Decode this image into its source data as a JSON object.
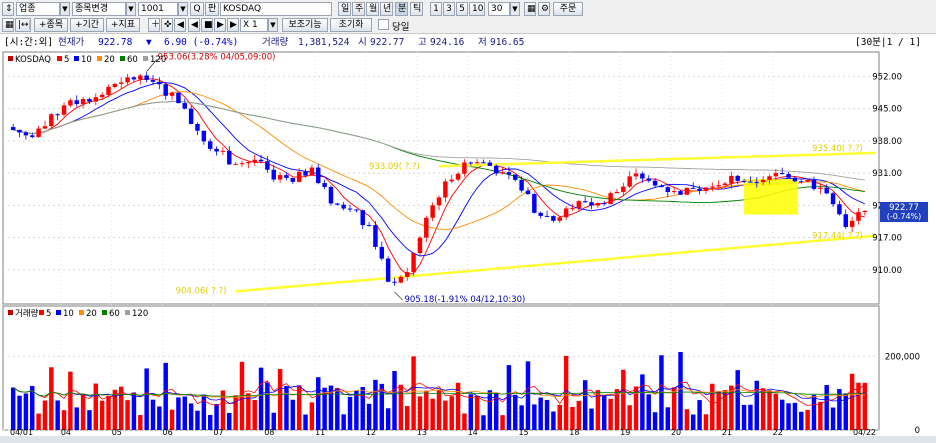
{
  "toolbar": {
    "market": "업종",
    "change_stock": "종목변경",
    "code": "1001",
    "search_btn": "Q",
    "kan": "판",
    "name": "KOSDAQ",
    "periods": [
      "일",
      "주",
      "월",
      "년",
      "분",
      "틱"
    ],
    "intervals": [
      "1",
      "3",
      "5",
      "10"
    ],
    "interval_value": "30",
    "order_btn": "주문",
    "row2": [
      "+종목",
      "+기간",
      "+지표"
    ],
    "multiplier": "X 1",
    "aux_btn": "보조기능",
    "reset_btn": "초기화",
    "today_label": "당일"
  },
  "info": {
    "label": "[시:간:외]",
    "price_label": "현재가",
    "price": "922.78",
    "arrow": "▼",
    "change": "6.90 (-0.74%)",
    "volume_label": "거래량",
    "volume": "1,381,524",
    "open_label": "시",
    "open": "922.77",
    "high_label": "고",
    "high": "924.16",
    "low_label": "저",
    "low": "916.65",
    "period_right": "[30분|1 / 1]"
  },
  "colors": {
    "up": "#ff0000",
    "down": "#0000ff",
    "ma5": "#ff0000",
    "ma10": "#0000ff",
    "ma20": "#ff8c00",
    "ma60": "#008000",
    "ma120": "#a0a0a0",
    "trendline": "#ffff33",
    "highlight": "#ffff00"
  },
  "chart_data": {
    "type": "candlestick",
    "price_legend": {
      "name": "KOSDAQ",
      "entries": [
        {
          "label": "5",
          "color": "#ff0000"
        },
        {
          "label": "10",
          "color": "#0000ff"
        },
        {
          "label": "20",
          "color": "#ff8c00"
        },
        {
          "label": "60",
          "color": "#008000"
        },
        {
          "label": "120",
          "color": "#a0a0a0"
        }
      ]
    },
    "volume_legend": {
      "name": "거래량",
      "entries": [
        {
          "label": "5",
          "color": "#ff0000"
        },
        {
          "label": "10",
          "color": "#0000ff"
        },
        {
          "label": "20",
          "color": "#ff8c00"
        },
        {
          "label": "60",
          "color": "#008000"
        },
        {
          "label": "120",
          "color": "#a0a0a0"
        }
      ]
    },
    "y_ticks": [
      "952.00",
      "945.00",
      "938.00",
      "931.00",
      "924.00",
      "917.00",
      "910.00"
    ],
    "y_tick_values": [
      952,
      945,
      938,
      931,
      924,
      917,
      910
    ],
    "ylim": [
      903,
      956
    ],
    "vol_ticks": [
      "200,000",
      "0"
    ],
    "vol_tick_values": [
      200000,
      0
    ],
    "vol_max": 320000,
    "current_label": "922.77",
    "current_value": 922.77,
    "current_pct": "(-0.74%)",
    "high_annotation": "953.06(3.28% 04/05,09:00)",
    "high_value": 953.06,
    "low_annotation": "905.18(-1.91% 04/12,10:30)",
    "low_value": 905.18,
    "x_day_labels": [
      "04/01",
      "04",
      "05",
      "06",
      "07",
      "08",
      "11",
      "12",
      "13",
      "14",
      "15",
      "18",
      "19",
      "20",
      "21",
      "22"
    ],
    "x_end_label": "04/22",
    "trend_upper": {
      "label": "933.09(  ?.?)",
      "right_label": "935.40(  ?.?)",
      "start": 932.5,
      "end": 935.4
    },
    "trend_lower": {
      "label": "904.06(  ?.?)",
      "right_label": "917.44(  ?.?)",
      "start": 905.3,
      "end": 917.4
    },
    "bars_per_day": 13,
    "open_prices": [
      941.0,
      939.2,
      941.2,
      945.7,
      947.1,
      948.0,
      950.7,
      952.2,
      950.3,
      946.2,
      940.2,
      935.7,
      933.0,
      933.9,
      929.6,
      929.1,
      932.2,
      924.4,
      923.1,
      919.7,
      907.4,
      909.5,
      921.3,
      929.2,
      933.3,
      933.3,
      931.2,
      927.2,
      921.7,
      921.4,
      924.9,
      924.5,
      926.9,
      930.9,
      928.3,
      927.1,
      927.6,
      928.1,
      930.4,
      929.1,
      930.3,
      930.0,
      929.5,
      926.6,
      919.3
    ],
    "close_prices": [
      939.2,
      941.2,
      945.7,
      947.1,
      948.0,
      950.7,
      952.2,
      950.3,
      946.2,
      940.2,
      935.7,
      933.0,
      933.9,
      929.6,
      929.1,
      932.2,
      924.4,
      923.1,
      919.7,
      907.4,
      909.5,
      921.3,
      929.2,
      933.3,
      933.3,
      931.2,
      927.2,
      921.7,
      921.4,
      924.9,
      924.5,
      926.9,
      930.9,
      928.3,
      927.1,
      927.6,
      928.1,
      930.4,
      929.1,
      930.3,
      930.0,
      929.5,
      926.6,
      919.3,
      922.8
    ]
  }
}
